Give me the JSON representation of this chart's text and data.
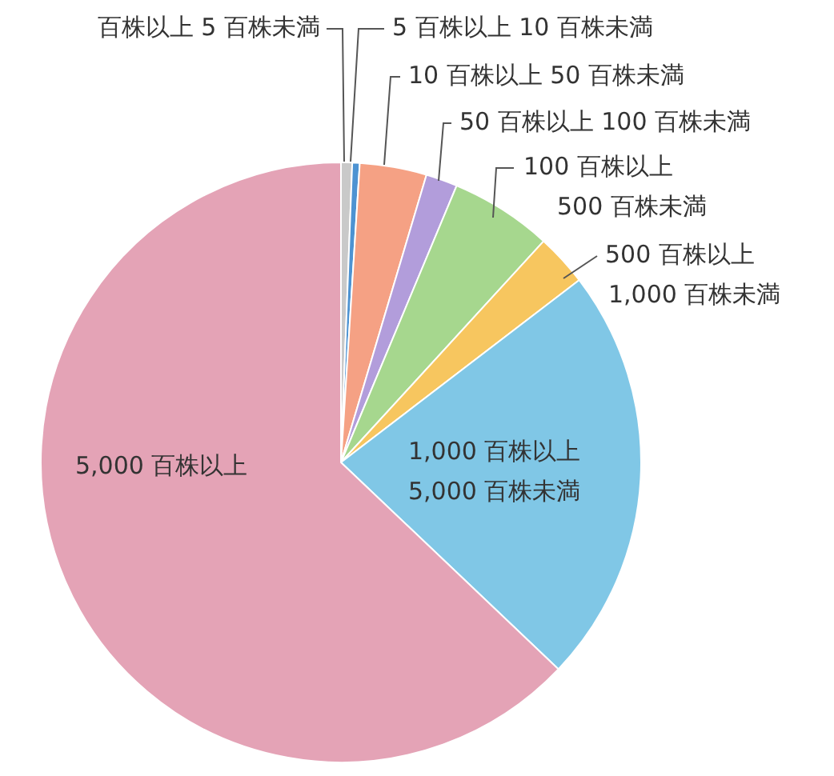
{
  "chart_data": {
    "type": "pie",
    "categories": [
      "百株以上 5 百株未満",
      "5 百株以上 10 百株未満",
      "10 百株以上 50 百株未満",
      "50 百株以上 100 百株未満",
      "100 百株以上\n500 百株未満",
      "500 百株以上\n1,000 百株未満",
      "1,000 百株以上\n5,000 百株未満",
      "5,000 百株以上"
    ],
    "values": [
      0.6,
      0.4,
      3.6,
      1.7,
      5.5,
      2.8,
      22.5,
      62.9
    ],
    "colors": [
      "#c9c9c9",
      "#4d93d2",
      "#f5a184",
      "#b29ddb",
      "#a6d78e",
      "#f7c65f",
      "#80c7e6",
      "#e4a3b6"
    ],
    "legend": false
  }
}
